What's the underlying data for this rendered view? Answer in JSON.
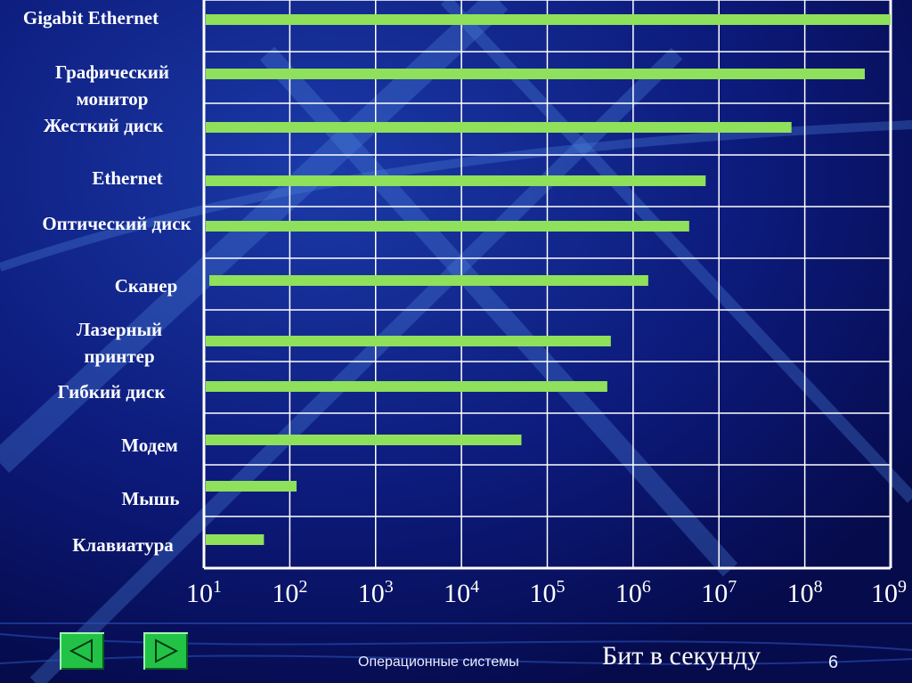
{
  "chart_data": {
    "type": "bar",
    "orientation": "horizontal",
    "categories": [
      "Gigabit Ethernet",
      "Графический монитор",
      "Жесткий диск",
      "Ethernet",
      "Оптический диск",
      "Сканер",
      "Лазерный принтер",
      "Гибкий диск",
      "Модем",
      "Мышь",
      "Клавиатура"
    ],
    "values": [
      1000000000,
      500000000,
      70000000,
      7000000,
      4500000,
      1500000,
      550000,
      500000,
      50000,
      120,
      50
    ],
    "xscale": "log",
    "xlim": [
      10,
      1000000000
    ],
    "xticks": [
      "10",
      "10",
      "10",
      "10",
      "10",
      "10",
      "10",
      "10",
      "10"
    ],
    "xtick_exponents": [
      "1",
      "2",
      "3",
      "4",
      "5",
      "6",
      "7",
      "8",
      "9"
    ],
    "xlabel": "Бит в секунду",
    "grid": true,
    "bar_color": "#8fe05a",
    "grid_color": "#ffffff"
  },
  "footer": {
    "course": "Операционные системы",
    "page": "6"
  },
  "nav": {
    "prev_icon": "triangle-left-icon",
    "next_icon": "triangle-right-icon"
  }
}
